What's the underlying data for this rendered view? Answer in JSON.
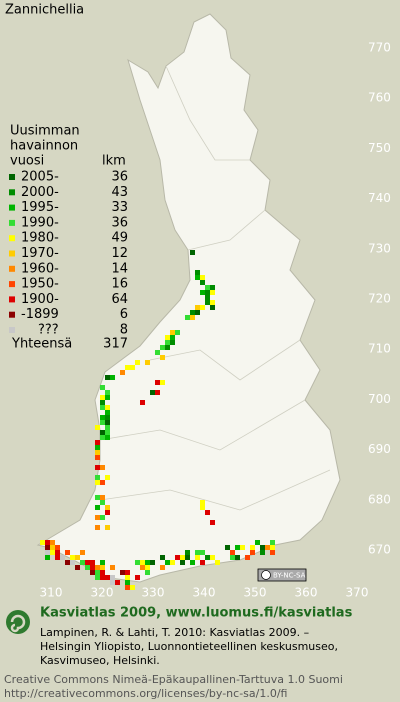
{
  "title": "Zannichellia",
  "legend": {
    "heading": [
      "Uusimman",
      "havainnon",
      "vuosi"
    ],
    "count_heading": "lkm",
    "rows": [
      {
        "label": "2005-",
        "count": 36,
        "color": "#006400"
      },
      {
        "label": "2000-",
        "count": 43,
        "color": "#008c00"
      },
      {
        "label": "1995-",
        "count": 33,
        "color": "#00b400"
      },
      {
        "label": "1990-",
        "count": 36,
        "color": "#33dd33"
      },
      {
        "label": "1980-",
        "count": 49,
        "color": "#ffff00"
      },
      {
        "label": "1970-",
        "count": 12,
        "color": "#ffcc00"
      },
      {
        "label": "1960-",
        "count": 14,
        "color": "#ff8800"
      },
      {
        "label": "1950-",
        "count": 16,
        "color": "#ff4400"
      },
      {
        "label": "1900-",
        "count": 64,
        "color": "#dd0000"
      },
      {
        "label": "-1899",
        "count": 6,
        "color": "#8b0000"
      },
      {
        "label": "???",
        "count": 8,
        "color": "#c8c8c8"
      }
    ],
    "total_label": "Yhteensä",
    "total": 317
  },
  "grid": {
    "northing": [
      770,
      760,
      750,
      740,
      730,
      720,
      710,
      700,
      690,
      680,
      670
    ],
    "easting": [
      310,
      320,
      330,
      340,
      350,
      360,
      370
    ]
  },
  "license_badge": "BY-NC-SA",
  "footer": {
    "heading": "Kasviatlas 2009, www.luomus.fi/kasviatlas",
    "citation": [
      "Lampinen, R. & Lahti, T. 2010: Kasviatlas 2009. –",
      "Helsingin Yliopisto, Luonnontieteellinen keskusmuseo,",
      "Kasvimuseo, Helsinki."
    ],
    "license": [
      "Creative Commons Nimeä-Epäkaupallinen-Tarttuva 1.0 Suomi",
      "http://creativecommons.org/licenses/by-nc-sa/1.0/fi"
    ]
  }
}
